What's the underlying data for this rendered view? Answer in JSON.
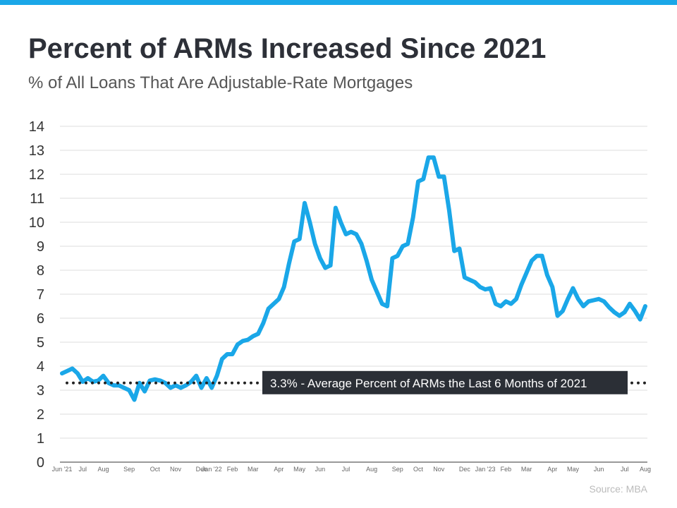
{
  "chart_data": {
    "type": "line",
    "title": "Percent of ARMs Increased Since 2021",
    "subtitle": "% of All Loans That Are Adjustable-Rate Mortgages",
    "source": "Source: MBA",
    "categories": [
      "Jun '21",
      null,
      null,
      null,
      "Jul",
      null,
      null,
      null,
      "Aug",
      null,
      null,
      null,
      null,
      "Sep",
      null,
      null,
      null,
      null,
      "Oct",
      null,
      null,
      null,
      "Nov",
      null,
      null,
      null,
      null,
      "Dec",
      null,
      "Jan '22",
      null,
      null,
      null,
      "Feb",
      null,
      null,
      null,
      "Mar",
      null,
      null,
      null,
      null,
      "Apr",
      null,
      null,
      null,
      "May",
      null,
      null,
      null,
      "Jun",
      null,
      null,
      null,
      null,
      "Jul",
      null,
      null,
      null,
      null,
      "Aug",
      null,
      null,
      null,
      null,
      "Sep",
      null,
      null,
      null,
      "Oct",
      null,
      null,
      null,
      "Nov",
      null,
      null,
      null,
      null,
      "Dec",
      null,
      null,
      null,
      "Jan '23",
      null,
      null,
      null,
      "Feb",
      null,
      null,
      null,
      "Mar",
      null,
      null,
      null,
      null,
      "Apr",
      null,
      null,
      null,
      "May",
      null,
      null,
      null,
      null,
      "Jun",
      null,
      null,
      null,
      null,
      "Jul",
      null,
      null,
      null,
      "Aug"
    ],
    "series": [
      {
        "name": "ARMs",
        "color": "#1aa7e8",
        "values": [
          3.7,
          3.8,
          3.9,
          3.7,
          3.35,
          3.5,
          3.35,
          3.4,
          3.6,
          3.3,
          3.2,
          3.2,
          3.1,
          3.0,
          2.6,
          3.3,
          2.95,
          3.4,
          3.45,
          3.4,
          3.3,
          3.1,
          3.2,
          3.1,
          3.2,
          3.35,
          3.6,
          3.1,
          3.5,
          3.1,
          3.6,
          4.3,
          4.5,
          4.5,
          4.9,
          5.05,
          5.1,
          5.25,
          5.35,
          5.8,
          6.4,
          6.6,
          6.8,
          7.3,
          8.3,
          9.2,
          9.3,
          10.8,
          10.0,
          9.1,
          8.5,
          8.1,
          8.2,
          10.6,
          10.0,
          9.5,
          9.6,
          9.5,
          9.1,
          8.4,
          7.6,
          7.1,
          6.6,
          6.5,
          8.5,
          8.6,
          9.0,
          9.1,
          10.2,
          11.7,
          11.8,
          12.7,
          12.7,
          11.9,
          11.9,
          10.5,
          8.8,
          8.9,
          7.7,
          7.6,
          7.5,
          7.3,
          7.2,
          7.25,
          6.6,
          6.5,
          6.7,
          6.6,
          6.8,
          7.4,
          7.9,
          8.4,
          8.6,
          8.6,
          7.8,
          7.3,
          6.1,
          6.3,
          6.8,
          7.25,
          6.8,
          6.5,
          6.7,
          6.75,
          6.8,
          6.7,
          6.45,
          6.25,
          6.1,
          6.25,
          6.6,
          6.3,
          5.95,
          6.5
        ]
      }
    ],
    "reference_line": {
      "value": 3.3,
      "label": "3.3% - Average Percent of ARMs the Last 6 Months of 2021"
    },
    "ylim": [
      0,
      14
    ],
    "yticks": [
      0,
      1,
      2,
      3,
      4,
      5,
      6,
      7,
      8,
      9,
      10,
      11,
      12,
      13,
      14
    ],
    "grid": true
  }
}
